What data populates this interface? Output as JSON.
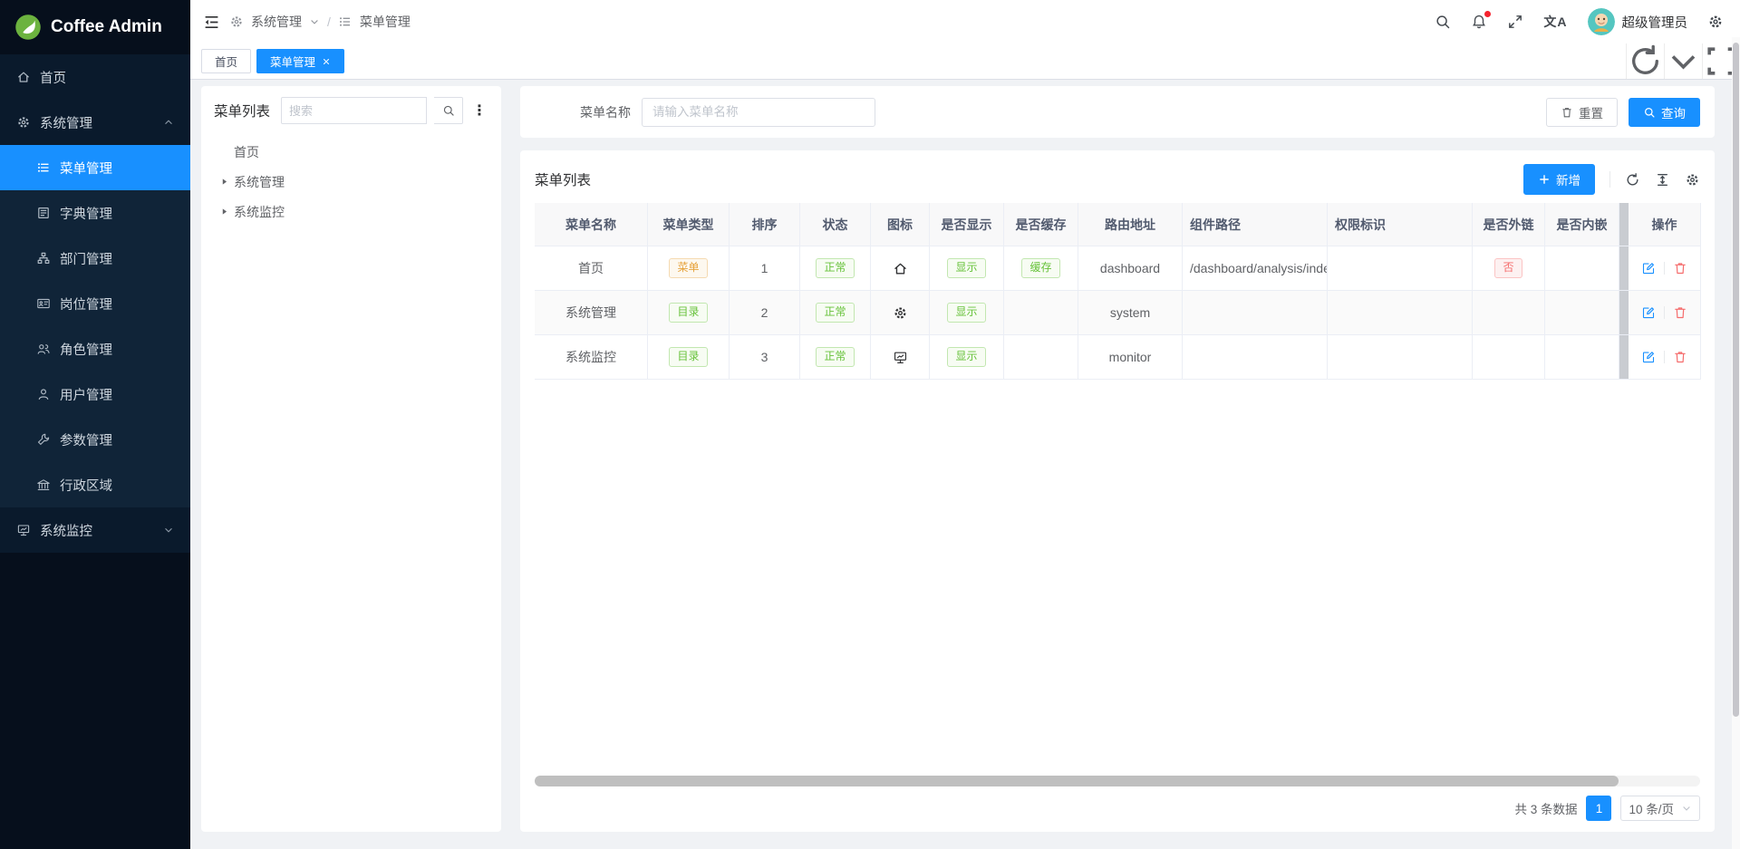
{
  "brand": {
    "name": "Coffee Admin"
  },
  "topbar": {
    "breadcrumb": {
      "group": "系统管理",
      "page": "菜单管理"
    },
    "translate_label": "文A",
    "username": "超级管理员"
  },
  "tabbar": {
    "tabs": [
      {
        "label": "首页",
        "active": false,
        "closable": false
      },
      {
        "label": "菜单管理",
        "active": true,
        "closable": true
      }
    ]
  },
  "sidebar": {
    "items": [
      {
        "label": "首页",
        "icon": "home-icon"
      },
      {
        "label": "系统管理",
        "icon": "gear-icon",
        "expanded": true,
        "children": [
          {
            "label": "菜单管理",
            "icon": "list-icon",
            "active": true
          },
          {
            "label": "字典管理",
            "icon": "dict-icon"
          },
          {
            "label": "部门管理",
            "icon": "org-icon"
          },
          {
            "label": "岗位管理",
            "icon": "idcard-icon"
          },
          {
            "label": "角色管理",
            "icon": "roles-icon"
          },
          {
            "label": "用户管理",
            "icon": "user-icon"
          },
          {
            "label": "参数管理",
            "icon": "wrench-icon"
          },
          {
            "label": "行政区域",
            "icon": "bank-icon"
          }
        ]
      },
      {
        "label": "系统监控",
        "icon": "monitor-icon",
        "expanded": false
      }
    ]
  },
  "tree_panel": {
    "title": "菜单列表",
    "search_placeholder": "搜索",
    "nodes": [
      {
        "label": "首页",
        "expandable": false
      },
      {
        "label": "系统管理",
        "expandable": true
      },
      {
        "label": "系统监控",
        "expandable": true
      }
    ]
  },
  "filter": {
    "label": "菜单名称",
    "placeholder": "请输入菜单名称",
    "reset_label": "重置",
    "search_label": "查询"
  },
  "table_card": {
    "title": "菜单列表",
    "add_label": "新增"
  },
  "table": {
    "columns": [
      {
        "key": "name",
        "label": "菜单名称"
      },
      {
        "key": "type",
        "label": "菜单类型"
      },
      {
        "key": "order",
        "label": "排序"
      },
      {
        "key": "status",
        "label": "状态"
      },
      {
        "key": "icon",
        "label": "图标"
      },
      {
        "key": "visible",
        "label": "是否显示"
      },
      {
        "key": "cache",
        "label": "是否缓存"
      },
      {
        "key": "route",
        "label": "路由地址"
      },
      {
        "key": "component",
        "label": "组件路径"
      },
      {
        "key": "permission",
        "label": "权限标识"
      },
      {
        "key": "external",
        "label": "是否外链"
      },
      {
        "key": "embedded",
        "label": "是否内嵌"
      },
      {
        "key": "ops",
        "label": "操作"
      }
    ],
    "rows": [
      {
        "name": "首页",
        "type": {
          "text": "菜单",
          "variant": "warning"
        },
        "order": "1",
        "status": {
          "text": "正常",
          "variant": "success"
        },
        "icon": "home-icon",
        "visible": {
          "text": "显示",
          "variant": "success"
        },
        "cache": {
          "text": "缓存",
          "variant": "success"
        },
        "route": "dashboard",
        "component": "/dashboard/analysis/index",
        "permission": "",
        "external": {
          "text": "否",
          "variant": "danger"
        },
        "embedded": ""
      },
      {
        "name": "系统管理",
        "type": {
          "text": "目录",
          "variant": "success"
        },
        "order": "2",
        "status": {
          "text": "正常",
          "variant": "success"
        },
        "icon": "gear-icon",
        "visible": {
          "text": "显示",
          "variant": "success"
        },
        "cache": "",
        "route": "system",
        "component": "",
        "permission": "",
        "external": "",
        "embedded": ""
      },
      {
        "name": "系统监控",
        "type": {
          "text": "目录",
          "variant": "success"
        },
        "order": "3",
        "status": {
          "text": "正常",
          "variant": "success"
        },
        "icon": "monitor-icon",
        "visible": {
          "text": "显示",
          "variant": "success"
        },
        "cache": "",
        "route": "monitor",
        "component": "",
        "permission": "",
        "external": "",
        "embedded": ""
      }
    ]
  },
  "pagination": {
    "total_text": "共 3 条数据",
    "page": "1",
    "page_size": "10 条/页"
  },
  "colors": {
    "primary": "#1890ff",
    "success": "#67c23a",
    "warning": "#e6a23c",
    "danger": "#f56c6c",
    "sidebar_bg": "#060f1c"
  }
}
